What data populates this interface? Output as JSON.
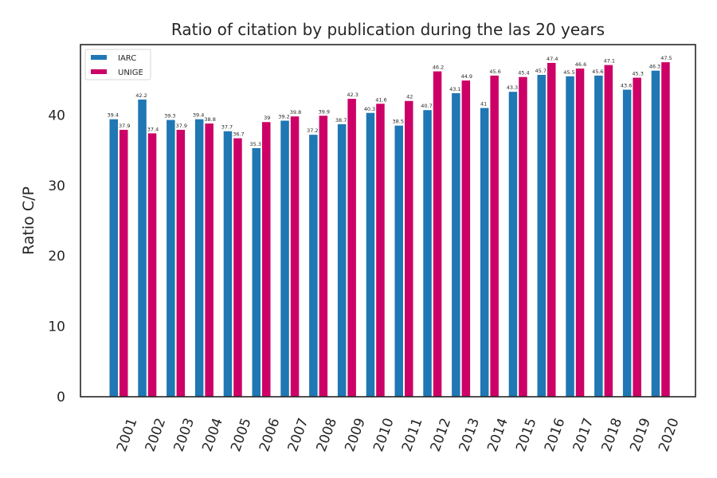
{
  "chart_data": {
    "type": "bar",
    "title": "Ratio of citation by publication during the las 20 years",
    "xlabel": "",
    "ylabel": "Ratio C/P",
    "ylim": [
      0,
      50
    ],
    "yticks": [
      0,
      10,
      20,
      30,
      40
    ],
    "grid": false,
    "legend_position": "top-left",
    "categories": [
      "2001",
      "2002",
      "2003",
      "2004",
      "2005",
      "2006",
      "2007",
      "2008",
      "2009",
      "2010",
      "2011",
      "2012",
      "2013",
      "2014",
      "2015",
      "2016",
      "2017",
      "2018",
      "2019",
      "2020"
    ],
    "series": [
      {
        "name": "IARC",
        "color": "#1f77b4",
        "values": [
          39.4,
          42.2,
          39.3,
          39.4,
          37.7,
          35.3,
          39.2,
          37.2,
          38.7,
          40.3,
          38.5,
          40.7,
          43.1,
          41,
          43.3,
          45.7,
          45.5,
          45.6,
          43.6,
          46.3
        ]
      },
      {
        "name": "UNIGE",
        "color": "#cc0066",
        "values": [
          37.9,
          37.4,
          37.9,
          38.8,
          36.7,
          39,
          39.8,
          39.9,
          42.3,
          41.6,
          42,
          46.2,
          44.9,
          45.6,
          45.4,
          47.4,
          46.6,
          47.1,
          45.3,
          47.5
        ]
      }
    ]
  }
}
